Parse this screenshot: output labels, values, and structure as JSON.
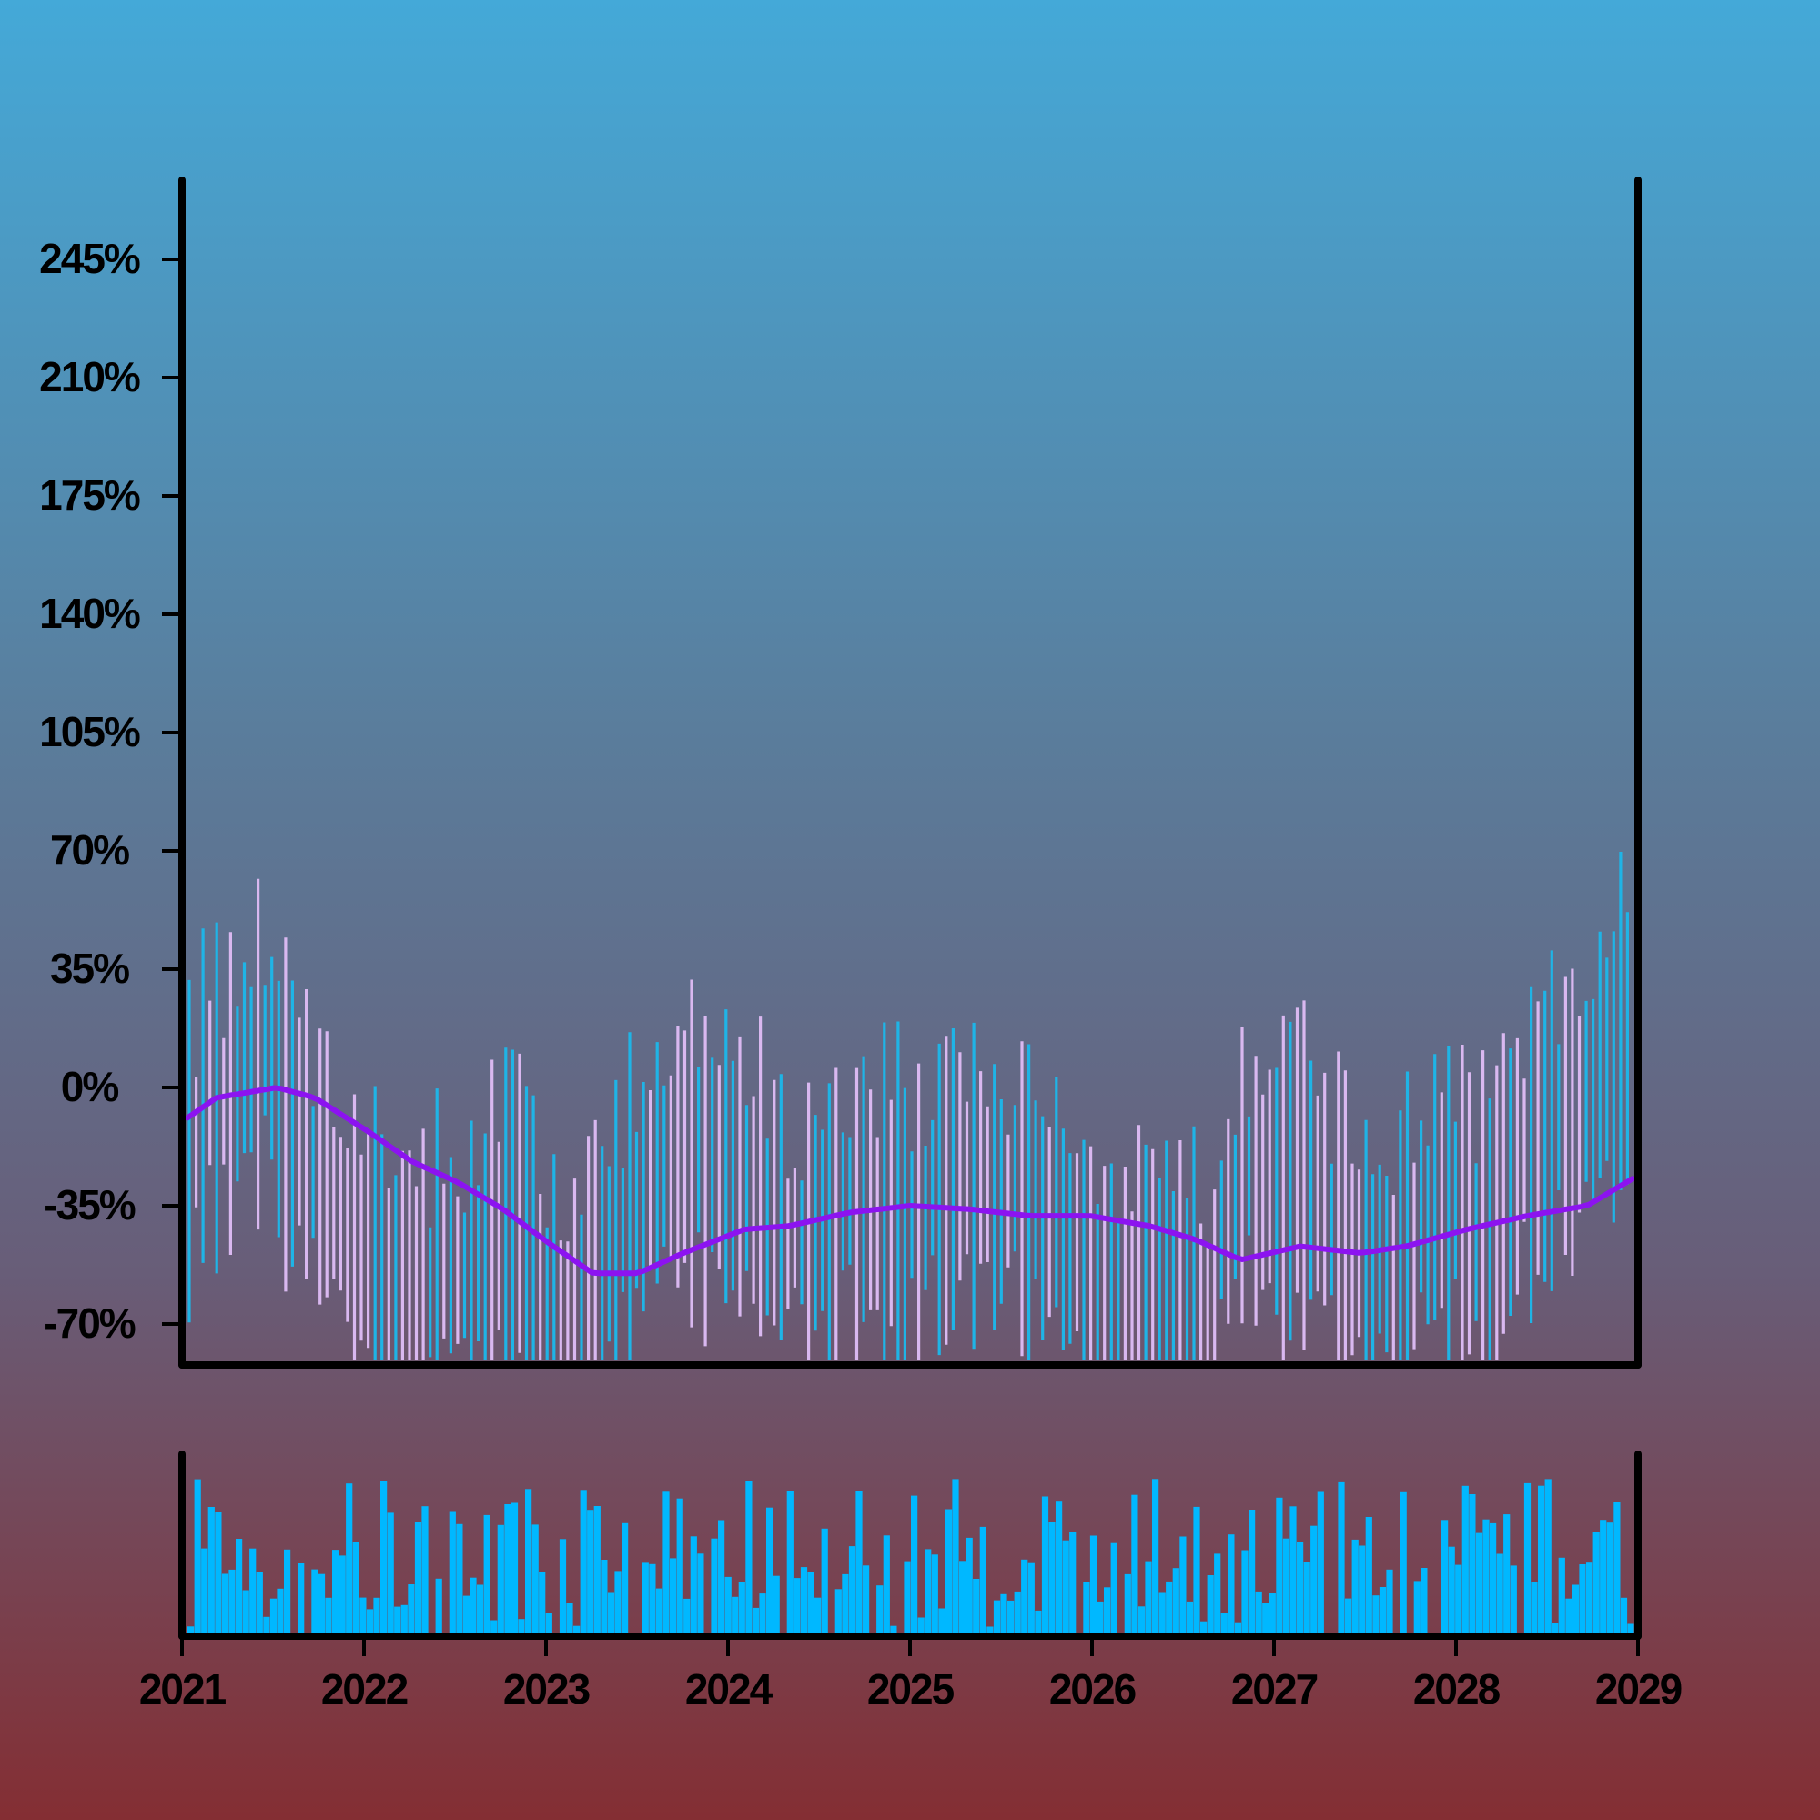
{
  "chart_data": {
    "type": "ohlc",
    "title": "",
    "xlabel": "",
    "ylabel": "",
    "x_range": [
      "2021-01-01",
      "2029-01-01"
    ],
    "x_ticks": [
      "2021",
      "2022",
      "2023",
      "2024",
      "2025",
      "2026",
      "2027",
      "2028",
      "2029"
    ],
    "y_range": [
      -80,
      270
    ],
    "y_ticks": [
      "-70%",
      "-35%",
      "0%",
      "35%",
      "70%",
      "105%",
      "140%",
      "175%",
      "210%",
      "245%"
    ],
    "y_tick_values": [
      -70,
      -35,
      0,
      35,
      70,
      105,
      140,
      175,
      210,
      245
    ],
    "grid": false,
    "legend": "none",
    "colors": {
      "up": "#1fb4e6",
      "down": "#d9b8f0",
      "moving_average": "#8c13f0",
      "volume": "#00b8ff",
      "axes": "#000000"
    },
    "price_anchors": [
      {
        "date": "2021-01-01",
        "value": -15
      },
      {
        "date": "2021-03-01",
        "value": 0
      },
      {
        "date": "2021-06-15",
        "value": 5
      },
      {
        "date": "2021-09-01",
        "value": -15
      },
      {
        "date": "2021-12-01",
        "value": -45
      },
      {
        "date": "2022-02-15",
        "value": -58
      },
      {
        "date": "2022-05-01",
        "value": -55
      },
      {
        "date": "2022-08-01",
        "value": -52
      },
      {
        "date": "2022-11-01",
        "value": -38
      },
      {
        "date": "2023-02-01",
        "value": -68
      },
      {
        "date": "2023-04-01",
        "value": -63
      },
      {
        "date": "2023-06-01",
        "value": -40
      },
      {
        "date": "2023-09-01",
        "value": -25
      },
      {
        "date": "2023-12-01",
        "value": -20
      },
      {
        "date": "2024-02-01",
        "value": -22
      },
      {
        "date": "2024-05-01",
        "value": -45
      },
      {
        "date": "2024-09-01",
        "value": -33
      },
      {
        "date": "2025-01-01",
        "value": -37
      },
      {
        "date": "2025-04-01",
        "value": -28
      },
      {
        "date": "2025-08-01",
        "value": -33
      },
      {
        "date": "2025-11-01",
        "value": -38
      },
      {
        "date": "2026-02-01",
        "value": -60
      },
      {
        "date": "2026-06-01",
        "value": -62
      },
      {
        "date": "2026-09-01",
        "value": -65
      },
      {
        "date": "2026-11-01",
        "value": -25
      },
      {
        "date": "2027-03-01",
        "value": -25
      },
      {
        "date": "2027-06-01",
        "value": -45
      },
      {
        "date": "2027-09-01",
        "value": -55
      },
      {
        "date": "2027-12-01",
        "value": -35
      },
      {
        "date": "2028-03-01",
        "value": -45
      },
      {
        "date": "2028-06-01",
        "value": -25
      },
      {
        "date": "2028-09-01",
        "value": -10
      },
      {
        "date": "2029-01-01",
        "value": 18
      }
    ],
    "moving_average": [
      {
        "date": "2021-01-01",
        "value": -9
      },
      {
        "date": "2021-03-01",
        "value": -3
      },
      {
        "date": "2021-07-01",
        "value": 0
      },
      {
        "date": "2021-09-15",
        "value": -3
      },
      {
        "date": "2022-01-01",
        "value": -13
      },
      {
        "date": "2022-04-01",
        "value": -22
      },
      {
        "date": "2022-07-01",
        "value": -28
      },
      {
        "date": "2022-10-01",
        "value": -36
      },
      {
        "date": "2023-01-01",
        "value": -46
      },
      {
        "date": "2023-04-01",
        "value": -55
      },
      {
        "date": "2023-07-01",
        "value": -55
      },
      {
        "date": "2023-10-01",
        "value": -49
      },
      {
        "date": "2024-02-01",
        "value": -42
      },
      {
        "date": "2024-05-01",
        "value": -41
      },
      {
        "date": "2024-09-01",
        "value": -37
      },
      {
        "date": "2025-01-01",
        "value": -35
      },
      {
        "date": "2025-05-01",
        "value": -36
      },
      {
        "date": "2025-09-01",
        "value": -38
      },
      {
        "date": "2026-01-01",
        "value": -38
      },
      {
        "date": "2026-05-01",
        "value": -41
      },
      {
        "date": "2026-08-01",
        "value": -45
      },
      {
        "date": "2026-11-01",
        "value": -51
      },
      {
        "date": "2027-03-01",
        "value": -47
      },
      {
        "date": "2027-07-01",
        "value": -49
      },
      {
        "date": "2027-10-01",
        "value": -47
      },
      {
        "date": "2028-02-01",
        "value": -42
      },
      {
        "date": "2028-06-01",
        "value": -38
      },
      {
        "date": "2028-10-01",
        "value": -35
      },
      {
        "date": "2029-01-01",
        "value": -27
      }
    ],
    "bar_count": 210,
    "volume_panel": true
  }
}
